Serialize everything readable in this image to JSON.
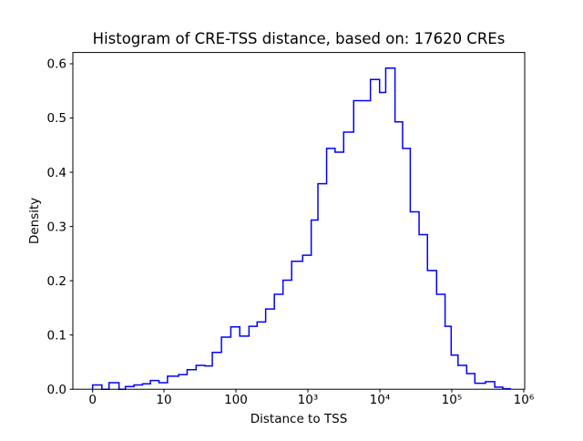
{
  "figure": {
    "background": "#ffffff"
  },
  "chart_data": {
    "type": "histogram_step",
    "title": "Histogram of CRE-TSS distance, based on: 17620 CREs",
    "xlabel": "Distance to TSS",
    "ylabel": "Density",
    "n_cres": 17620,
    "x_scale": "symlog",
    "x_linthresh": 10,
    "grid": false,
    "legend": false,
    "line_color": "#0000ff",
    "axis_color": "#000000",
    "ylim": [
      0,
      0.62
    ],
    "xlim": [
      -2.8,
      1000000
    ],
    "y_ticks": [
      {
        "v": 0.0,
        "label": "0.0"
      },
      {
        "v": 0.1,
        "label": "0.1"
      },
      {
        "v": 0.2,
        "label": "0.2"
      },
      {
        "v": 0.3,
        "label": "0.3"
      },
      {
        "v": 0.4,
        "label": "0.4"
      },
      {
        "v": 0.5,
        "label": "0.5"
      },
      {
        "v": 0.6,
        "label": "0.6"
      }
    ],
    "x_ticks": [
      {
        "v": 0,
        "label": "0"
      },
      {
        "v": 10,
        "label": "10"
      },
      {
        "v": 100,
        "label": "100"
      },
      {
        "v": 1000,
        "label": "10³"
      },
      {
        "v": 10000,
        "label": "10⁴"
      },
      {
        "v": 100000,
        "label": "10⁵"
      },
      {
        "v": 1000000,
        "label": "10⁶"
      }
    ],
    "bin_edges": [
      0,
      1.3,
      2.3,
      3.7,
      4.6,
      5.8,
      7.0,
      8.1,
      9.3,
      11.2,
      16,
      21,
      28,
      37,
      47,
      63,
      85,
      113,
      152,
      197,
      259,
      342,
      451,
      595,
      847,
      1113,
      1380,
      1822,
      2385,
      3143,
      4330,
      5580,
      7400,
      9915,
      12070,
      16240,
      20700,
      26500,
      35100,
      45900,
      61500,
      80600,
      98000,
      122000,
      161000,
      209000,
      294000,
      395000,
      511000,
      649000
    ],
    "densities": [
      0.008,
      0.0,
      0.012,
      0.0,
      0.005,
      0.008,
      0.01,
      0.016,
      0.012,
      0.024,
      0.027,
      0.036,
      0.044,
      0.043,
      0.068,
      0.096,
      0.115,
      0.098,
      0.116,
      0.124,
      0.148,
      0.175,
      0.201,
      0.236,
      0.247,
      0.312,
      0.379,
      0.444,
      0.437,
      0.474,
      0.532,
      0.532,
      0.571,
      0.547,
      0.592,
      0.493,
      0.444,
      0.327,
      0.285,
      0.219,
      0.175,
      0.116,
      0.063,
      0.044,
      0.029,
      0.011,
      0.014,
      0.004,
      0.001
    ]
  }
}
